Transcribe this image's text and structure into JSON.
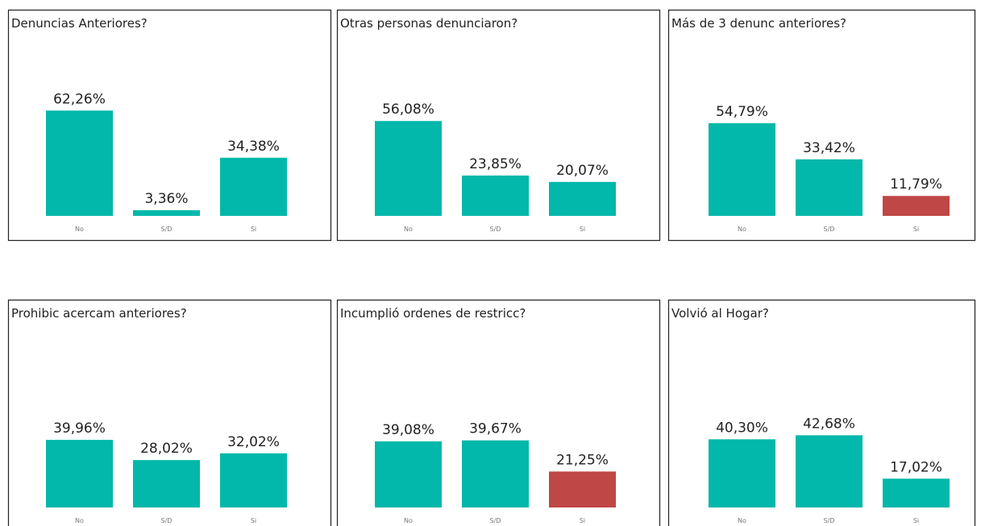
{
  "chart_data": [
    {
      "type": "bar",
      "title": "Denuncias  Anteriores?",
      "categories": [
        "No",
        "S/D",
        "Si"
      ],
      "values": [
        62.26,
        3.36,
        34.38
      ],
      "value_labels": [
        "62,26%",
        "3,36%",
        "34,38%"
      ],
      "colors": [
        "#01b8aa",
        "#01b8aa",
        "#01b8aa"
      ]
    },
    {
      "type": "bar",
      "title": "Otras personas denunciaron?",
      "categories": [
        "No",
        "S/D",
        "Si"
      ],
      "values": [
        56.08,
        23.85,
        20.07
      ],
      "value_labels": [
        "56,08%",
        "23,85%",
        "20,07%"
      ],
      "colors": [
        "#01b8aa",
        "#01b8aa",
        "#01b8aa"
      ]
    },
    {
      "type": "bar",
      "title": "Más de 3 denunc anteriores?",
      "categories": [
        "No",
        "S/D",
        "Si"
      ],
      "values": [
        54.79,
        33.42,
        11.79
      ],
      "value_labels": [
        "54,79%",
        "33,42%",
        "11,79%"
      ],
      "colors": [
        "#01b8aa",
        "#01b8aa",
        "#bf4745"
      ]
    },
    {
      "type": "bar",
      "title": "Prohibic acercam anteriores?",
      "categories": [
        "No",
        "S/D",
        "Si"
      ],
      "values": [
        39.96,
        28.02,
        32.02
      ],
      "value_labels": [
        "39,96%",
        "28,02%",
        "32,02%"
      ],
      "colors": [
        "#01b8aa",
        "#01b8aa",
        "#01b8aa"
      ]
    },
    {
      "type": "bar",
      "title": "Incumplió ordenes de restricc?",
      "categories": [
        "No",
        "S/D",
        "Si"
      ],
      "values": [
        39.08,
        39.67,
        21.25
      ],
      "value_labels": [
        "39,08%",
        "39,67%",
        "21,25%"
      ],
      "colors": [
        "#01b8aa",
        "#01b8aa",
        "#bf4745"
      ]
    },
    {
      "type": "bar",
      "title": "Volvió al Hogar?",
      "categories": [
        "No",
        "S/D",
        "Si"
      ],
      "values": [
        40.3,
        42.68,
        17.02
      ],
      "value_labels": [
        "40,30%",
        "42,68%",
        "17,02%"
      ],
      "colors": [
        "#01b8aa",
        "#01b8aa",
        "#01b8aa"
      ]
    }
  ]
}
